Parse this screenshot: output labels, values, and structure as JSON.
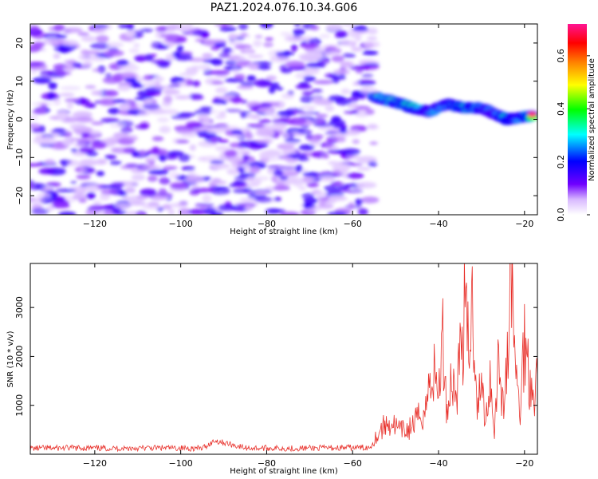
{
  "title": "PAZ1.2024.076.10.34.G06",
  "chart_data": [
    {
      "type": "heatmap",
      "xlabel": "Height of straight line (km)",
      "ylabel": "Frequency (Hz)",
      "xlim": [
        -135,
        -17
      ],
      "ylim": [
        -25,
        25
      ],
      "xticks": [
        -120,
        -100,
        -80,
        -60,
        -40,
        -20
      ],
      "yticks": [
        -20,
        -10,
        0,
        10,
        20
      ],
      "colorbar": {
        "label": "Normalized spectral amplitude",
        "range": [
          0,
          0.72
        ],
        "ticks": [
          0.0,
          0.2,
          0.4,
          0.6
        ],
        "colormap": [
          "#ffffff",
          "#7000ff",
          "#0000ff",
          "#00ffff",
          "#00ff00",
          "#ffff00",
          "#ff8000",
          "#ff0000",
          "#ff1493"
        ]
      },
      "noise_region": {
        "x": [
          -135,
          -55
        ],
        "y": [
          -25,
          25
        ],
        "amplitude_max": 0.12
      },
      "signal_track": [
        {
          "x": -55,
          "y": 6.0,
          "amp": 0.45
        },
        {
          "x": -50,
          "y": 4.5,
          "amp": 0.55
        },
        {
          "x": -46,
          "y": 3.0,
          "amp": 0.58
        },
        {
          "x": -42,
          "y": 2.0,
          "amp": 0.4
        },
        {
          "x": -38,
          "y": 4.0,
          "amp": 0.45
        },
        {
          "x": -34,
          "y": 3.0,
          "amp": 0.6
        },
        {
          "x": -30,
          "y": 3.0,
          "amp": 0.5
        },
        {
          "x": -27,
          "y": 1.5,
          "amp": 0.35
        },
        {
          "x": -24,
          "y": 0.0,
          "amp": 0.62
        },
        {
          "x": -21,
          "y": 0.5,
          "amp": 0.45
        },
        {
          "x": -18,
          "y": 1.0,
          "amp": 0.7
        }
      ]
    },
    {
      "type": "line",
      "xlabel": "Height of straight line (km)",
      "ylabel": "SNR (10 * v/v)",
      "xlim": [
        -135,
        -17
      ],
      "ylim": [
        0,
        3900
      ],
      "xticks": [
        -120,
        -100,
        -80,
        -60,
        -40,
        -20
      ],
      "yticks": [
        1000,
        2000,
        3000
      ],
      "color": "#e8302a",
      "series": [
        {
          "x": [
            -135,
            -125,
            -115,
            -105,
            -95,
            -92,
            -85,
            -75,
            -65,
            -56,
            -55,
            -53,
            -51,
            -49,
            -47,
            -45,
            -43,
            -41.5,
            -40,
            -39,
            -38,
            -37,
            -36,
            -35,
            -34,
            -33,
            -32,
            -31,
            -30,
            -29,
            -28,
            -27,
            -26,
            -25,
            -24,
            -23,
            -22,
            -21,
            -20,
            -19,
            -18,
            -17
          ],
          "y": [
            120,
            130,
            120,
            130,
            120,
            280,
            130,
            120,
            130,
            140,
            300,
            550,
            650,
            480,
            500,
            700,
            950,
            1750,
            1300,
            2300,
            850,
            1600,
            1200,
            2000,
            2800,
            2200,
            3100,
            1100,
            1350,
            700,
            1600,
            500,
            2100,
            900,
            1900,
            3850,
            1500,
            900,
            2400,
            1700,
            1300,
            1600
          ]
        }
      ]
    }
  ]
}
